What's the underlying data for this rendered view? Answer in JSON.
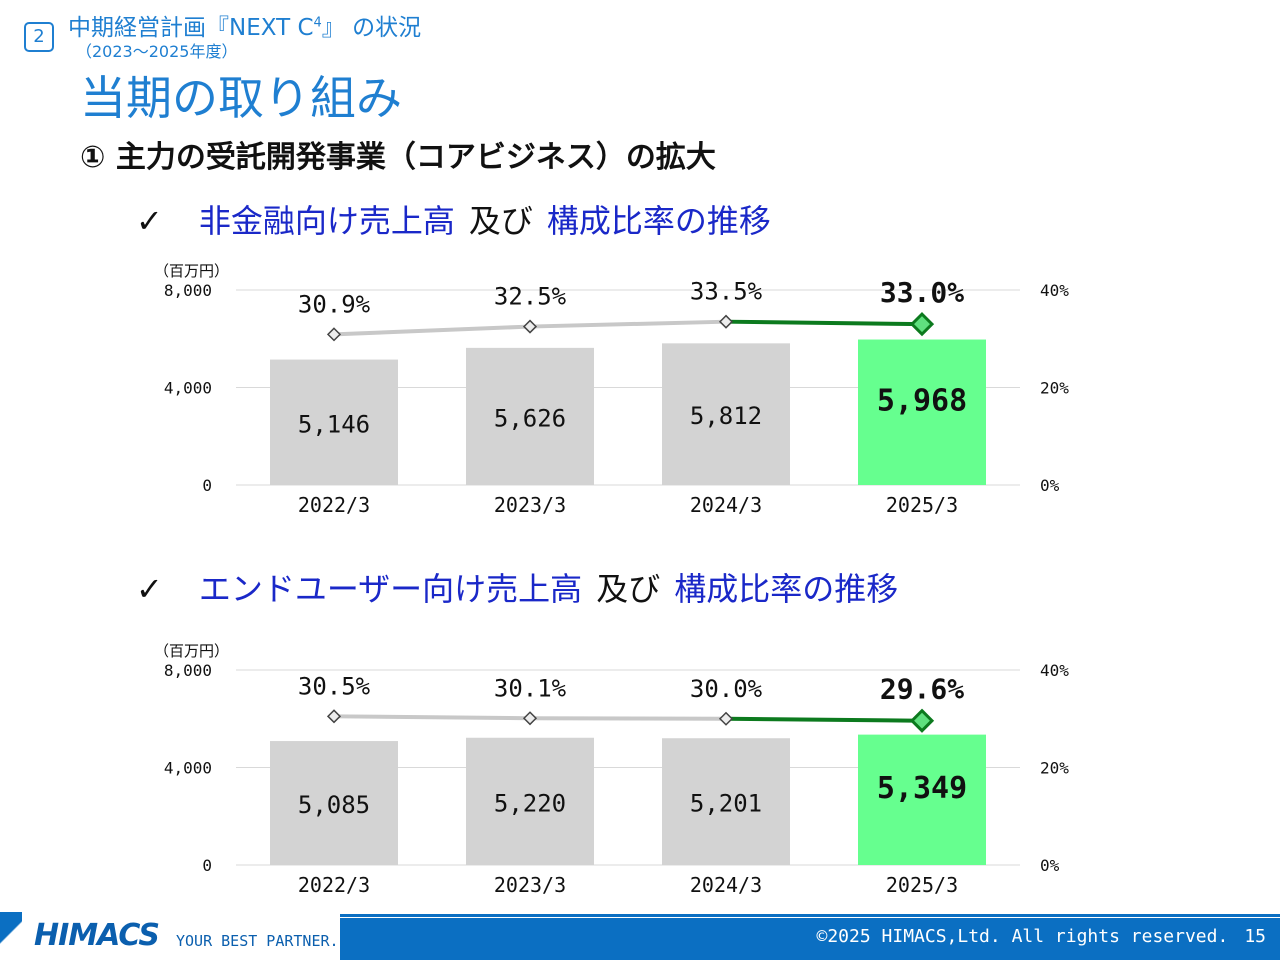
{
  "header": {
    "section_number": "2",
    "section_title": "中期経営計画『NEXT C",
    "section_title_sup": "4",
    "section_title_end": "』 の状況",
    "section_period": "（2023～2025年度）",
    "page_title": "当期の取り組み",
    "subheading": "① 主力の受託開発事業（コアビジネス）の拡大"
  },
  "charts_titles": [
    {
      "check": "✓",
      "part1": "非金融向け売上高",
      "part2": "及び",
      "part3": "構成比率の推移"
    },
    {
      "check": "✓",
      "part1": "エンドユーザー向け売上高",
      "part2": "及び",
      "part3": "構成比率の推移"
    }
  ],
  "chart_data": [
    {
      "type": "bar",
      "unit_label": "（百万円）",
      "categories": [
        "2022/3",
        "2023/3",
        "2024/3",
        "2025/3"
      ],
      "ylim": [
        0,
        8000
      ],
      "y_ticks": [
        "8,000",
        "4,000",
        "0"
      ],
      "y2lim": [
        0,
        40
      ],
      "y2_ticks": [
        "40%",
        "20%",
        "0%"
      ],
      "series": [
        {
          "type": "bar",
          "values": [
            5146,
            5626,
            5812,
            5968
          ],
          "labels": [
            "5,146",
            "5,626",
            "5,812",
            "5,968"
          ]
        },
        {
          "type": "line",
          "axis": "right",
          "values": [
            30.9,
            32.5,
            33.5,
            33.0
          ],
          "labels": [
            "30.9%",
            "32.5%",
            "33.5%",
            "33.0%"
          ]
        }
      ],
      "colors": {
        "bar": "#d3d3d3",
        "bar_highlight": "#66ff8f",
        "line": "#c8c8c8",
        "line_highlight": "#0c7a1e",
        "grid": "#d9d9d9"
      }
    },
    {
      "type": "bar",
      "unit_label": "（百万円）",
      "categories": [
        "2022/3",
        "2023/3",
        "2024/3",
        "2025/3"
      ],
      "ylim": [
        0,
        8000
      ],
      "y_ticks": [
        "8,000",
        "4,000",
        "0"
      ],
      "y2lim": [
        0,
        40
      ],
      "y2_ticks": [
        "40%",
        "20%",
        "0%"
      ],
      "series": [
        {
          "type": "bar",
          "values": [
            5085,
            5220,
            5201,
            5349
          ],
          "labels": [
            "5,085",
            "5,220",
            "5,201",
            "5,349"
          ]
        },
        {
          "type": "line",
          "axis": "right",
          "values": [
            30.5,
            30.1,
            30.0,
            29.6
          ],
          "labels": [
            "30.5%",
            "30.1%",
            "30.0%",
            "29.6%"
          ]
        }
      ],
      "colors": {
        "bar": "#d3d3d3",
        "bar_highlight": "#66ff8f",
        "line": "#c8c8c8",
        "line_highlight": "#0c7a1e",
        "grid": "#d9d9d9"
      }
    }
  ],
  "footer": {
    "logo": "HIMACS",
    "tagline": "YOUR BEST PARTNER.",
    "copyright": "©2025 HIMACS,Ltd. All rights reserved.",
    "page_number": "15"
  }
}
